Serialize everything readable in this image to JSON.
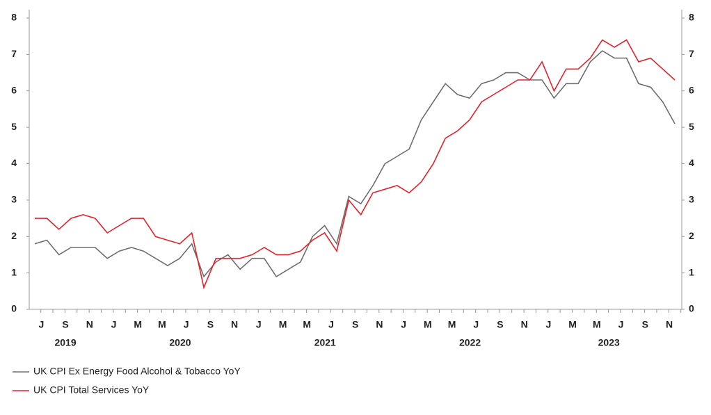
{
  "chart_data": {
    "type": "line",
    "categories": [
      null,
      "J",
      null,
      "S",
      null,
      "N",
      null,
      "J",
      null,
      "M",
      null,
      "M",
      null,
      "J",
      null,
      "S",
      null,
      "N",
      null,
      "J",
      null,
      "M",
      null,
      "M",
      null,
      "J",
      null,
      "S",
      null,
      "N",
      null,
      "J",
      null,
      "M",
      null,
      "M",
      null,
      "J",
      null,
      "S",
      null,
      "N",
      null,
      "J",
      null,
      "M",
      null,
      "M",
      null,
      "J",
      null,
      "S",
      null,
      "N"
    ],
    "year_labels": [
      "2019",
      "2020",
      "2021",
      "2022",
      "2023"
    ],
    "series": [
      {
        "name": "UK CPI Ex Energy Food Alcohol & Tobacco YoY",
        "color": "#6e6e6e",
        "values": [
          1.8,
          1.9,
          1.5,
          1.7,
          1.7,
          1.7,
          1.4,
          1.6,
          1.7,
          1.6,
          1.4,
          1.2,
          1.4,
          1.8,
          0.9,
          1.3,
          1.5,
          1.1,
          1.4,
          1.4,
          0.9,
          1.1,
          1.3,
          2.0,
          2.3,
          1.8,
          3.1,
          2.9,
          3.4,
          4.0,
          4.2,
          4.4,
          5.2,
          5.7,
          6.2,
          5.9,
          5.8,
          6.2,
          6.3,
          6.5,
          6.5,
          6.3,
          6.3,
          5.8,
          6.2,
          6.2,
          6.8,
          7.1,
          6.9,
          6.9,
          6.2,
          6.1,
          5.7,
          5.1
        ]
      },
      {
        "name": "UK CPI Total Services YoY",
        "color": "#e8202a",
        "values": [
          2.5,
          2.5,
          2.2,
          2.5,
          2.6,
          2.5,
          2.1,
          2.3,
          2.5,
          2.5,
          2.0,
          1.9,
          1.8,
          2.1,
          0.6,
          1.4,
          1.4,
          1.4,
          1.5,
          1.7,
          1.5,
          1.5,
          1.6,
          1.9,
          2.1,
          1.6,
          3.0,
          2.6,
          3.2,
          3.3,
          3.4,
          3.2,
          3.5,
          4.0,
          4.7,
          4.9,
          5.2,
          5.7,
          5.9,
          6.1,
          6.3,
          6.3,
          6.8,
          6.0,
          6.6,
          6.6,
          6.9,
          7.4,
          7.2,
          7.4,
          6.8,
          6.9,
          6.6,
          6.3
        ]
      }
    ],
    "ylim": [
      0,
      8
    ],
    "yticks": [
      0,
      1,
      2,
      3,
      4,
      5,
      6,
      7,
      8
    ],
    "grid": false
  }
}
